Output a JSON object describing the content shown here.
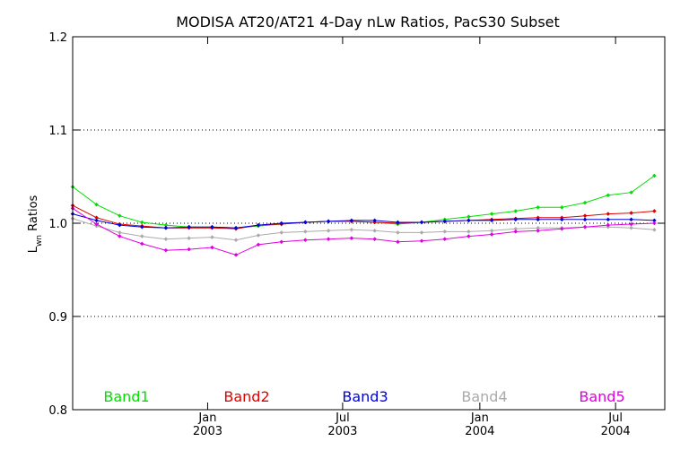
{
  "chart_data": {
    "type": "line",
    "title": "MODISA AT20/AT21 4-Day nLw Ratios, PacS30 Subset",
    "ylabel_main": "L",
    "ylabel_sub": "wn",
    "ylabel_rest": " Ratios",
    "ylim": [
      0.8,
      1.2
    ],
    "xlim": [
      "2002-07-04",
      "2004-09-05"
    ],
    "grid": "horizontal dotted",
    "yticks": [
      {
        "value": 0.8,
        "label": "0.8"
      },
      {
        "value": 0.9,
        "label": "0.9"
      },
      {
        "value": 1.0,
        "label": "1.0"
      },
      {
        "value": 1.1,
        "label": "1.1"
      },
      {
        "value": 1.2,
        "label": "1.2"
      }
    ],
    "xticks": [
      {
        "date": "2003-01-01",
        "month": "Jan",
        "year": "2003"
      },
      {
        "date": "2003-07-01",
        "month": "Jul",
        "year": "2003"
      },
      {
        "date": "2004-01-01",
        "month": "Jan",
        "year": "2004"
      },
      {
        "date": "2004-07-01",
        "month": "Jul",
        "year": "2004"
      }
    ],
    "x": [
      "2002-07-04",
      "2002-08-05",
      "2002-09-05",
      "2002-10-05",
      "2002-11-06",
      "2002-12-07",
      "2003-01-07",
      "2003-02-08",
      "2003-03-10",
      "2003-04-10",
      "2003-05-12",
      "2003-06-12",
      "2003-07-13",
      "2003-08-13",
      "2003-09-13",
      "2003-10-15",
      "2003-11-15",
      "2003-12-17",
      "2004-01-17",
      "2004-02-18",
      "2004-03-19",
      "2004-04-20",
      "2004-05-21",
      "2004-06-21",
      "2004-07-22",
      "2004-08-22"
    ],
    "series": [
      {
        "name": "Band1",
        "color": "#00e000",
        "values": [
          1.039,
          1.02,
          1.008,
          1.001,
          0.998,
          0.996,
          0.996,
          0.995,
          0.997,
          0.999,
          1.001,
          1.002,
          1.002,
          1.001,
          0.999,
          1.001,
          1.004,
          1.007,
          1.01,
          1.013,
          1.017,
          1.017,
          1.022,
          1.03,
          1.033,
          1.051
        ]
      },
      {
        "name": "Band2",
        "color": "#e00000",
        "values": [
          1.019,
          1.006,
          0.999,
          0.997,
          0.995,
          0.995,
          0.995,
          0.994,
          0.998,
          0.999,
          1.001,
          1.002,
          1.002,
          1.001,
          1.0,
          1.001,
          1.002,
          1.003,
          1.004,
          1.005,
          1.006,
          1.006,
          1.008,
          1.01,
          1.011,
          1.013
        ]
      },
      {
        "name": "Band3",
        "color": "#0000e0",
        "values": [
          1.01,
          1.003,
          0.998,
          0.996,
          0.995,
          0.996,
          0.996,
          0.995,
          0.998,
          1.0,
          1.001,
          1.002,
          1.003,
          1.003,
          1.001,
          1.001,
          1.002,
          1.003,
          1.003,
          1.004,
          1.004,
          1.004,
          1.004,
          1.004,
          1.004,
          1.003
        ]
      },
      {
        "name": "Band4",
        "color": "#aaaaaa",
        "values": [
          1.005,
          0.997,
          0.99,
          0.986,
          0.983,
          0.984,
          0.985,
          0.982,
          0.987,
          0.99,
          0.991,
          0.992,
          0.993,
          0.992,
          0.99,
          0.99,
          0.991,
          0.991,
          0.992,
          0.994,
          0.995,
          0.995,
          0.996,
          0.996,
          0.995,
          0.993
        ]
      },
      {
        "name": "Band5",
        "color": "#e000e0",
        "values": [
          1.016,
          0.999,
          0.986,
          0.978,
          0.971,
          0.972,
          0.974,
          0.966,
          0.977,
          0.98,
          0.982,
          0.983,
          0.984,
          0.983,
          0.98,
          0.981,
          0.983,
          0.986,
          0.988,
          0.991,
          0.992,
          0.994,
          0.996,
          0.998,
          0.999,
          1.0
        ]
      }
    ]
  }
}
